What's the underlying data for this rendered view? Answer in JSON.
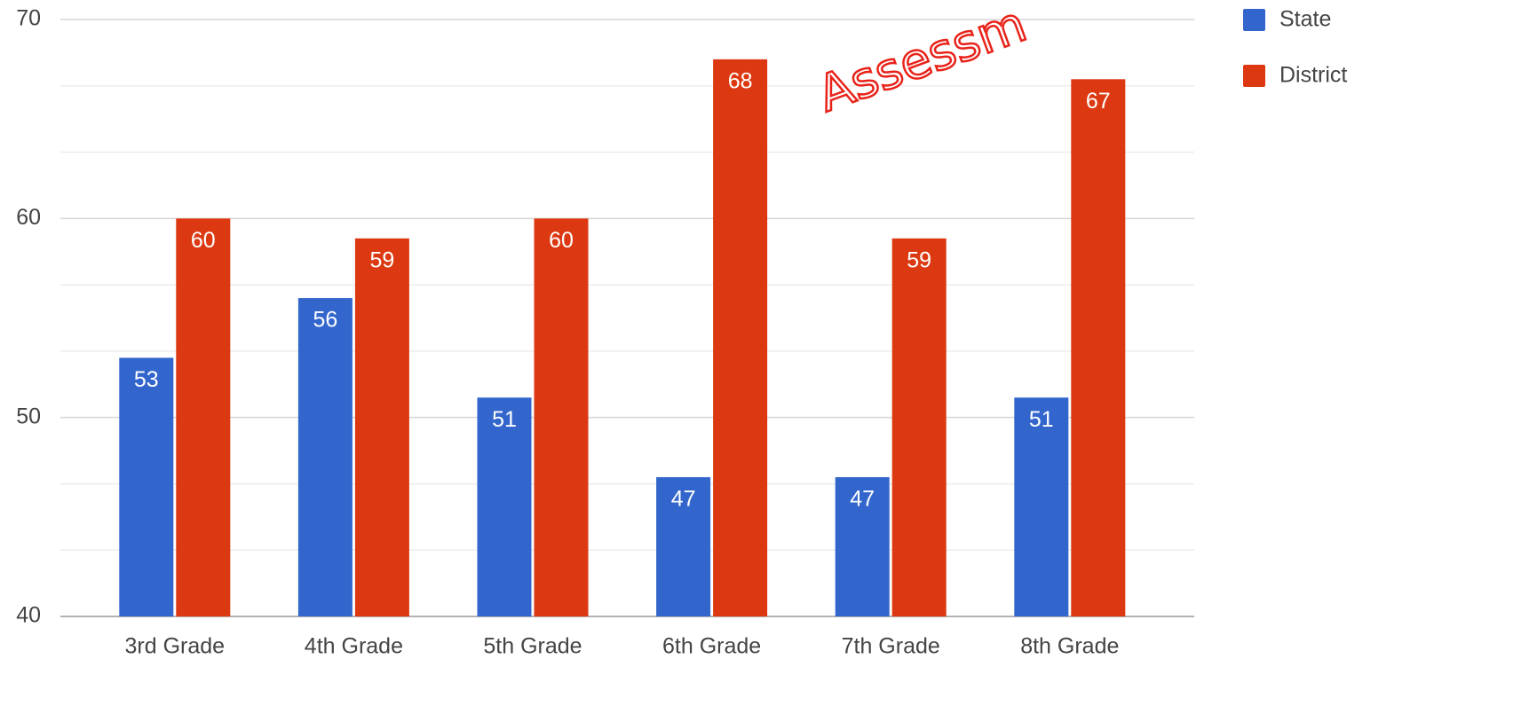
{
  "chart_data": {
    "type": "bar",
    "categories": [
      "3rd Grade",
      "4th Grade",
      "5th Grade",
      "6th Grade",
      "7th Grade",
      "8th Grade"
    ],
    "series": [
      {
        "name": "State",
        "color": "#3366cc",
        "values": [
          53,
          56,
          51,
          47,
          47,
          51
        ]
      },
      {
        "name": "District",
        "color": "#dc3912",
        "values": [
          60,
          59,
          60,
          68,
          59,
          67
        ]
      }
    ],
    "ylim": [
      40,
      70
    ],
    "yticks": [
      40,
      50,
      60,
      70
    ],
    "grid": true,
    "minor_grid_divisions": 3,
    "legend": "right",
    "annotation": "Assessm"
  }
}
